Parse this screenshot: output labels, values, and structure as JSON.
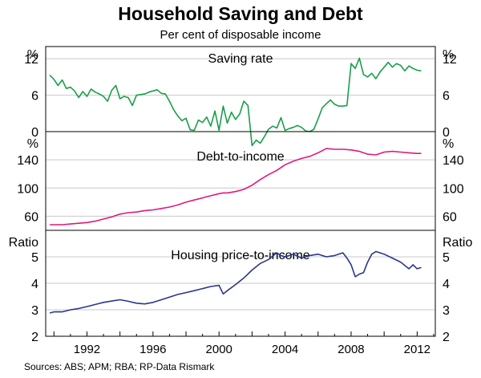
{
  "title": "Household Saving and Debt",
  "subtitle": "Per cent of disposable income",
  "source": "Sources: ABS; APM; RBA; RP-Data Rismark",
  "chart_data": [
    {
      "type": "line",
      "title": "Saving rate",
      "unit": "%",
      "color": "#1a9e4a",
      "ylim": [
        0,
        14
      ],
      "yticks": [
        0,
        6,
        12
      ],
      "x": [
        1989.75,
        1990.0,
        1990.25,
        1990.5,
        1990.75,
        1991.0,
        1991.25,
        1991.5,
        1991.75,
        1992.0,
        1992.25,
        1992.5,
        1992.75,
        1993.0,
        1993.25,
        1993.5,
        1993.75,
        1994.0,
        1994.25,
        1994.5,
        1994.75,
        1995.0,
        1995.25,
        1995.5,
        1995.75,
        1996.0,
        1996.25,
        1996.5,
        1996.75,
        1997.0,
        1997.25,
        1997.5,
        1997.75,
        1998.0,
        1998.25,
        1998.5,
        1998.75,
        1999.0,
        1999.25,
        1999.5,
        1999.75,
        2000.0,
        2000.25,
        2000.5,
        2000.75,
        2001.0,
        2001.25,
        2001.5,
        2001.75,
        2002.0,
        2002.25,
        2002.5,
        2002.75,
        2003.0,
        2003.25,
        2003.5,
        2003.75,
        2004.0,
        2004.25,
        2004.5,
        2004.75,
        2005.0,
        2005.25,
        2005.5,
        2005.75,
        2006.0,
        2006.25,
        2006.5,
        2006.75,
        2007.0,
        2007.25,
        2007.5,
        2007.75,
        2008.0,
        2008.25,
        2008.5,
        2008.75,
        2009.0,
        2009.25,
        2009.5,
        2009.75,
        2010.0,
        2010.25,
        2010.5,
        2010.75,
        2011.0,
        2011.25,
        2011.5,
        2011.75,
        2012.0,
        2012.25
      ],
      "values": [
        9.3,
        8.6,
        7.6,
        8.5,
        7.1,
        7.3,
        6.7,
        5.6,
        6.6,
        5.8,
        7.0,
        6.5,
        6.2,
        5.8,
        5.0,
        6.8,
        7.6,
        5.4,
        5.8,
        5.6,
        4.3,
        6.0,
        6.1,
        6.2,
        6.5,
        6.7,
        6.9,
        6.3,
        6.2,
        5.0,
        3.6,
        2.6,
        1.8,
        2.2,
        0.3,
        0.2,
        1.9,
        1.5,
        2.4,
        0.9,
        3.4,
        0.2,
        4.2,
        1.4,
        3.2,
        2.0,
        2.9,
        5.0,
        4.3,
        -2.3,
        -1.4,
        -1.9,
        -0.8,
        0.4,
        0.9,
        0.6,
        2.3,
        0.2,
        0.5,
        0.7,
        1.0,
        0.7,
        0.1,
        0.0,
        0.4,
        2.1,
        3.9,
        4.6,
        5.2,
        4.5,
        4.2,
        4.2,
        4.3,
        11.2,
        10.4,
        12.1,
        9.4,
        9.0,
        9.6,
        8.7,
        9.8,
        10.6,
        11.4,
        10.6,
        11.2,
        10.9,
        10.0,
        10.8,
        10.4,
        10.1,
        10.0
      ]
    },
    {
      "type": "line",
      "title": "Debt-to-income",
      "unit": "%",
      "color": "#e0197d",
      "ylim": [
        40,
        180
      ],
      "yticks": [
        60,
        100,
        140
      ],
      "x": [
        1989.75,
        1990.5,
        1991.0,
        1991.5,
        1992.0,
        1992.5,
        1993.0,
        1993.5,
        1994.0,
        1994.5,
        1995.0,
        1995.5,
        1996.0,
        1996.5,
        1997.0,
        1997.5,
        1998.0,
        1998.5,
        1999.0,
        1999.5,
        2000.0,
        2000.25,
        2000.5,
        2001.0,
        2001.5,
        2002.0,
        2002.5,
        2003.0,
        2003.5,
        2004.0,
        2004.5,
        2005.0,
        2005.5,
        2006.0,
        2006.5,
        2007.0,
        2007.5,
        2008.0,
        2008.5,
        2009.0,
        2009.5,
        2010.0,
        2010.5,
        2011.0,
        2011.5,
        2012.0,
        2012.25
      ],
      "values": [
        48,
        48,
        49,
        50,
        51,
        53,
        56,
        59,
        63,
        65,
        66,
        68,
        69,
        71,
        73,
        76,
        80,
        83,
        86,
        89,
        92,
        93,
        93,
        95,
        98,
        104,
        112,
        119,
        125,
        133,
        138,
        142,
        145,
        150,
        156,
        155,
        155,
        154,
        152,
        148,
        147,
        151,
        152,
        151,
        150,
        149,
        149
      ]
    },
    {
      "type": "line",
      "title": "Housing price-to-income",
      "unit": "Ratio",
      "color": "#2a3590",
      "ylim": [
        2,
        6
      ],
      "yticks": [
        2,
        3,
        4,
        5
      ],
      "x": [
        1989.75,
        1990.0,
        1990.5,
        1991.0,
        1991.5,
        1992.0,
        1992.5,
        1993.0,
        1993.5,
        1994.0,
        1994.5,
        1995.0,
        1995.5,
        1996.0,
        1996.5,
        1997.0,
        1997.5,
        1998.0,
        1998.5,
        1999.0,
        1999.5,
        2000.0,
        2000.25,
        2000.5,
        2001.0,
        2001.5,
        2002.0,
        2002.5,
        2003.0,
        2003.5,
        2003.75,
        2004.0,
        2004.5,
        2005.0,
        2005.5,
        2006.0,
        2006.5,
        2007.0,
        2007.5,
        2007.75,
        2008.0,
        2008.25,
        2008.5,
        2008.75,
        2009.0,
        2009.25,
        2009.5,
        2009.75,
        2010.0,
        2010.5,
        2011.0,
        2011.5,
        2011.75,
        2012.0,
        2012.25
      ],
      "values": [
        2.88,
        2.92,
        2.92,
        3.0,
        3.05,
        3.12,
        3.2,
        3.28,
        3.33,
        3.38,
        3.32,
        3.25,
        3.22,
        3.28,
        3.38,
        3.48,
        3.58,
        3.65,
        3.72,
        3.8,
        3.88,
        3.92,
        3.6,
        3.72,
        3.95,
        4.2,
        4.5,
        4.75,
        4.9,
        5.15,
        5.05,
        5.0,
        5.1,
        4.95,
        5.05,
        5.1,
        5.0,
        5.05,
        5.15,
        4.95,
        4.7,
        4.25,
        4.35,
        4.4,
        4.8,
        5.1,
        5.2,
        5.15,
        5.1,
        4.95,
        4.8,
        4.55,
        4.7,
        4.55,
        4.6
      ]
    }
  ],
  "x_axis": {
    "xlim": [
      1989.5,
      2013.1
    ],
    "labeled_ticks": [
      "1992",
      "1996",
      "2000",
      "2004",
      "2008",
      "2012"
    ]
  }
}
